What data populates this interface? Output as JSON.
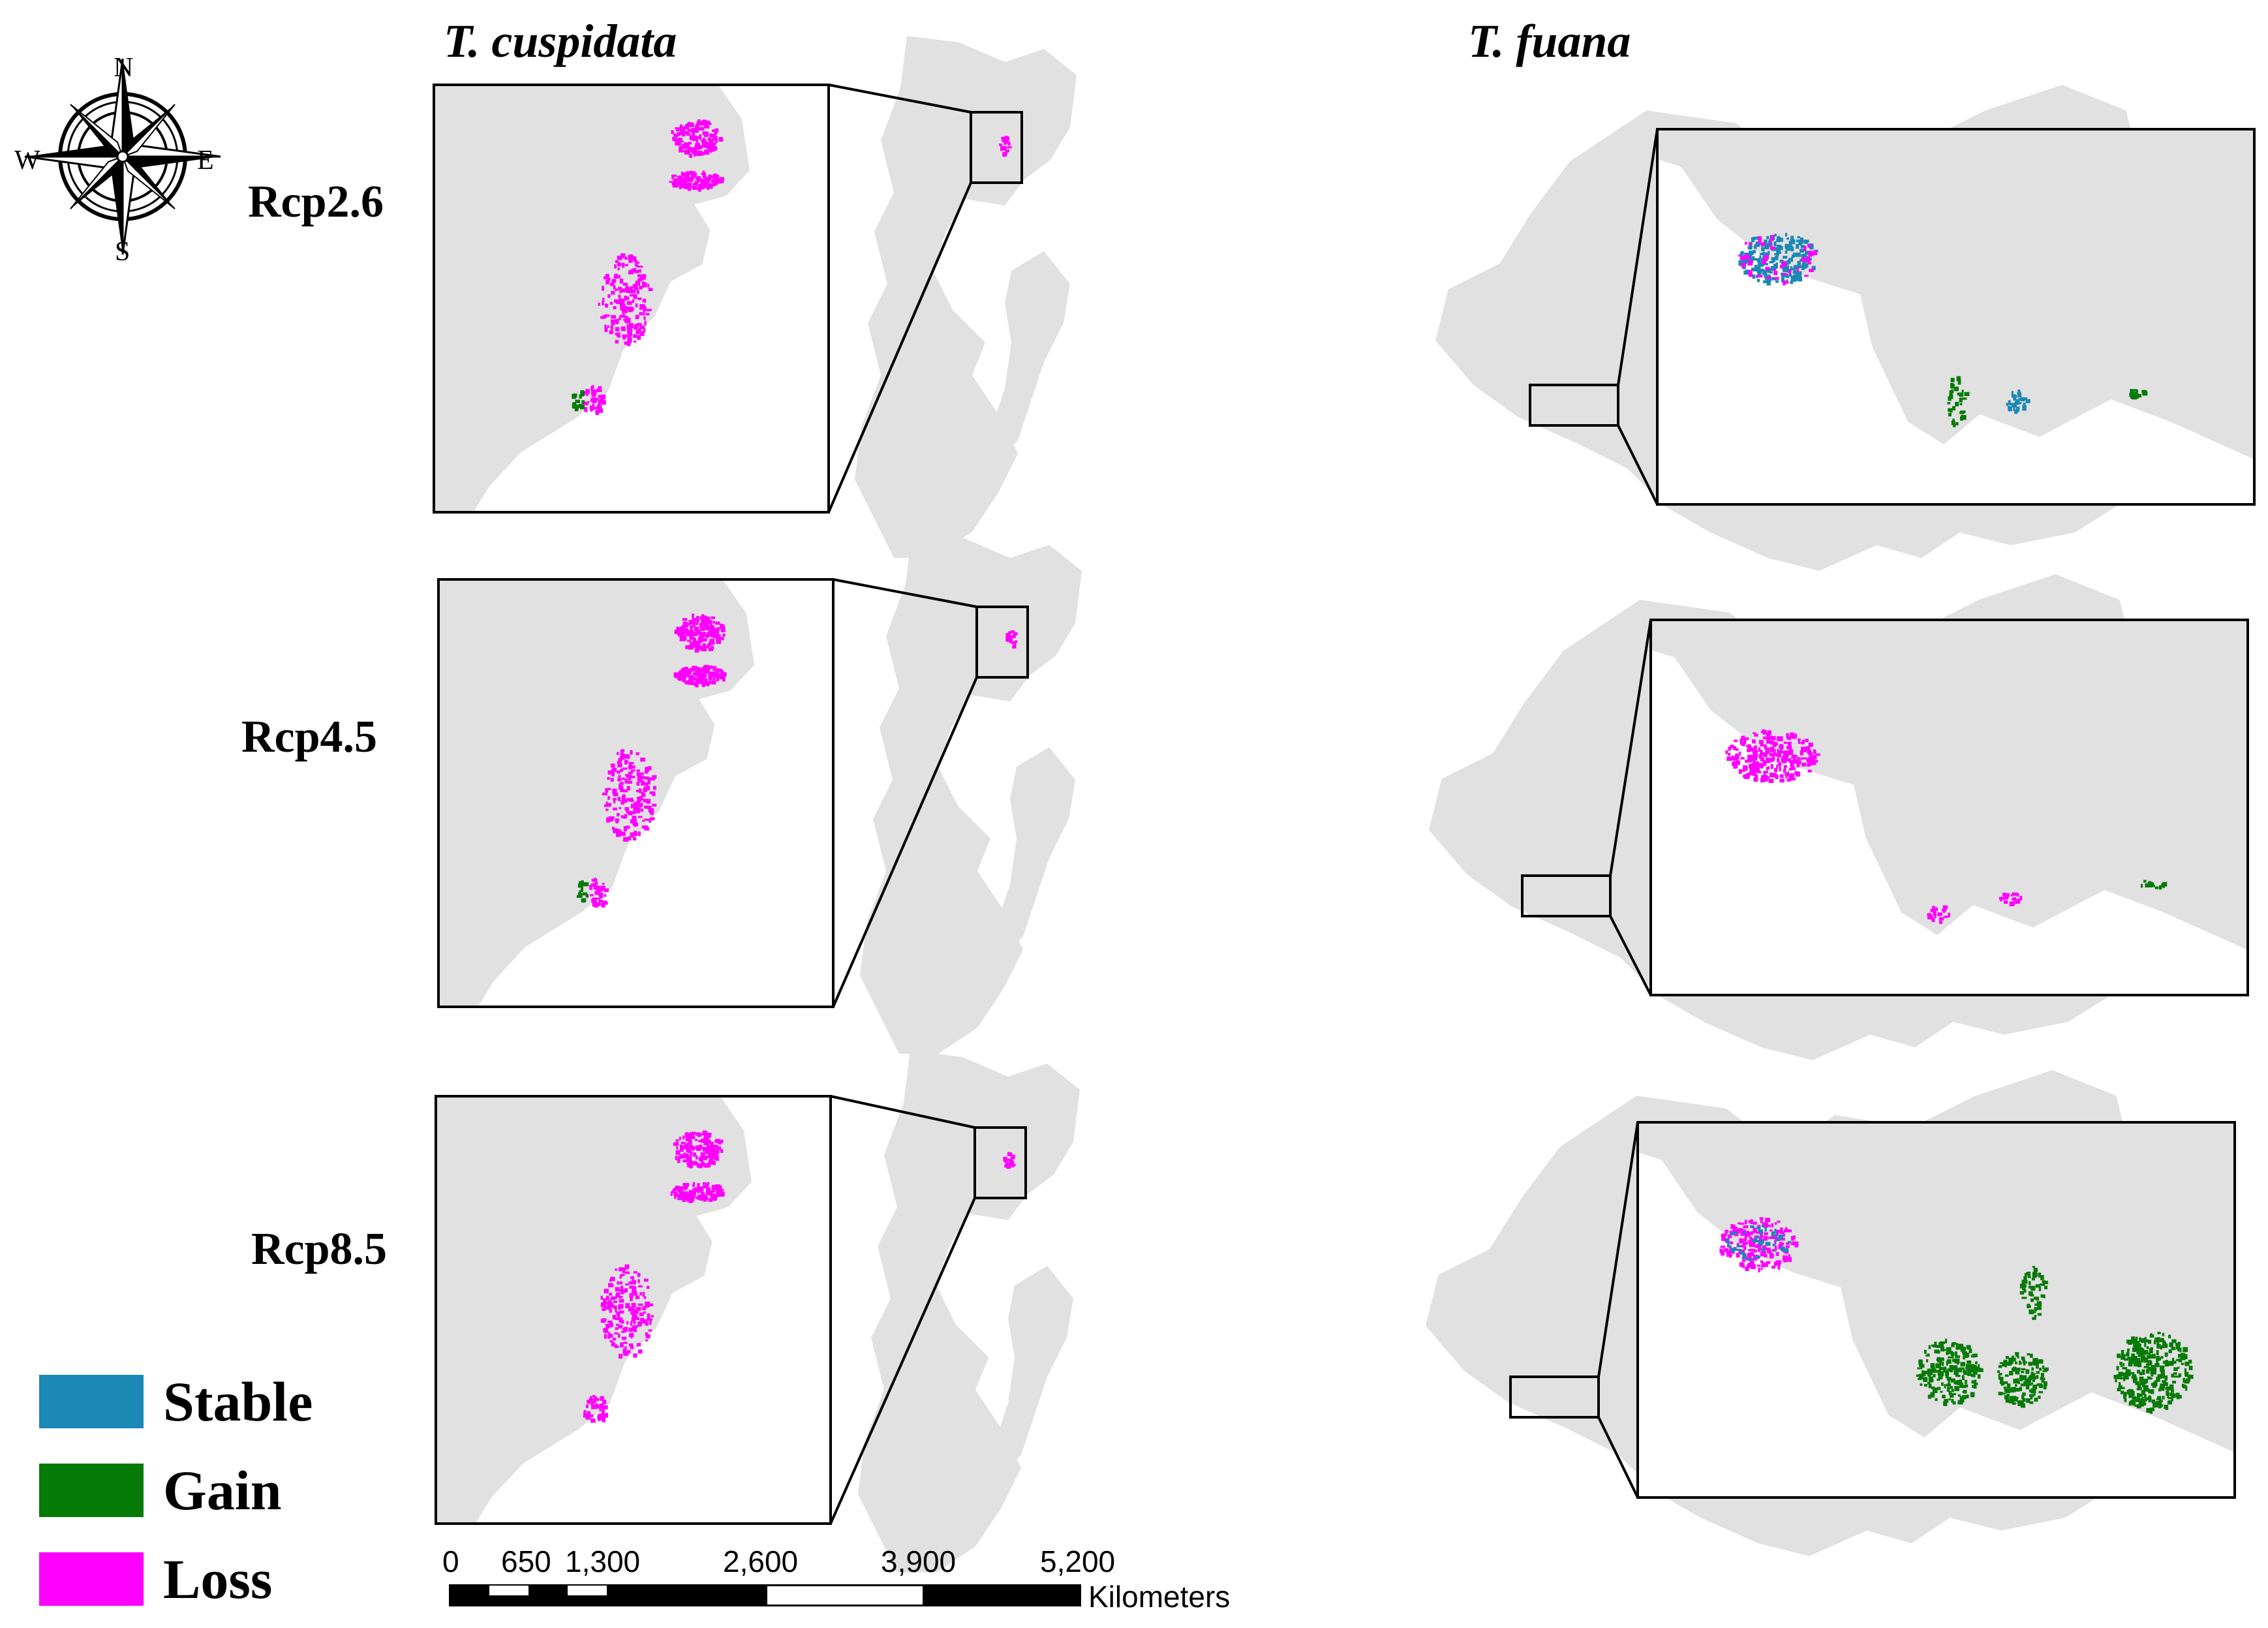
{
  "species": [
    {
      "name": "T. cuspidata"
    },
    {
      "name": "T. fuana"
    }
  ],
  "scenarios": [
    "Rcp2.6",
    "Rcp4.5",
    "Rcp8.5"
  ],
  "legend": [
    {
      "label": "Stable",
      "color": "#1b88b5"
    },
    {
      "label": "Gain",
      "color": "#067a06"
    },
    {
      "label": "Loss",
      "color": "#ff00ff"
    }
  ],
  "compass": {
    "n": "N",
    "s": "S",
    "e": "E",
    "w": "W"
  },
  "scale_bar": {
    "ticks": [
      "0",
      "650",
      "1,300",
      "2,600",
      "3,900",
      "5,200"
    ],
    "unit": "Kilometers"
  },
  "colors": {
    "land": "#e1e1e1",
    "frame": "#000000",
    "background": "#ffffff"
  }
}
